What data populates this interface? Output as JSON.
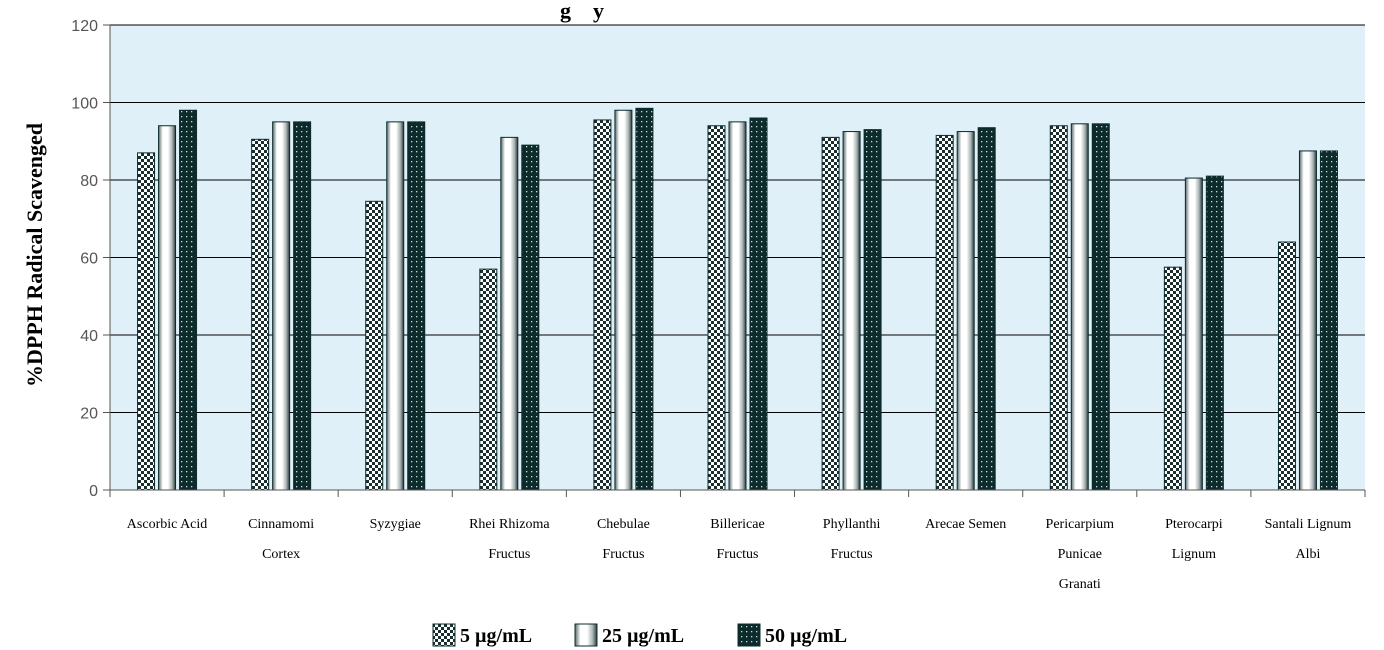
{
  "chart_data": {
    "type": "bar",
    "title": "g    y",
    "ylabel": "%DPPH Radical Scavenged",
    "xlabel": "",
    "ylim": [
      0,
      120
    ],
    "yticks": [
      0,
      20,
      40,
      60,
      80,
      100,
      120
    ],
    "grid": true,
    "legend_position": "bottom-center",
    "categories": [
      [
        "Ascorbic Acid"
      ],
      [
        "Cinnamomi",
        "Cortex"
      ],
      [
        "Syzygiae"
      ],
      [
        "Rhei Rhizoma",
        "Fructus"
      ],
      [
        "Chebulae",
        "Fructus"
      ],
      [
        "Billericae",
        "Fructus"
      ],
      [
        "Phyllanthi",
        "Fructus"
      ],
      [
        "Arecae Semen"
      ],
      [
        "Pericarpium",
        "Punicae",
        "Granati"
      ],
      [
        "Pterocarpi",
        "Lignum"
      ],
      [
        "Santali Lignum",
        "Albi"
      ]
    ],
    "series": [
      {
        "name": "5 µg/mL",
        "pattern": "checker",
        "values": [
          87,
          90.5,
          74.5,
          57,
          95.5,
          94,
          91,
          91.5,
          94,
          57.5,
          64
        ]
      },
      {
        "name": "25 µg/mL",
        "pattern": "cylinder",
        "values": [
          94,
          95,
          95,
          91,
          98,
          95,
          92.5,
          92.5,
          94.5,
          80.5,
          87.5
        ]
      },
      {
        "name": "50 µg/mL",
        "pattern": "dots",
        "values": [
          98,
          95,
          95,
          89,
          98.5,
          96,
          93,
          93.5,
          94.5,
          81,
          87.5
        ]
      }
    ],
    "colors": {
      "plot_background": "#dff0f8",
      "gridline": "#000000",
      "bar_dark": "#0d2b2b",
      "bar_light": "#ffffff",
      "tick_text": "#555555"
    }
  }
}
